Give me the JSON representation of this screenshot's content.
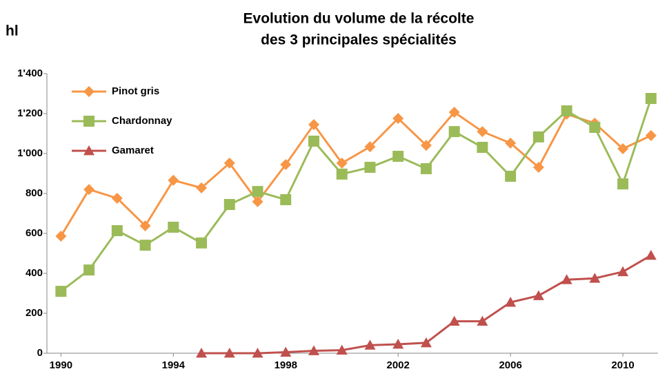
{
  "chart_data": {
    "type": "line",
    "title": [
      "Evolution du volume de la récolte",
      "des 3 principales spécialités"
    ],
    "y_label": "hl",
    "x": [
      1990,
      1991,
      1992,
      1993,
      1994,
      1995,
      1996,
      1997,
      1998,
      1999,
      2000,
      2001,
      2002,
      2003,
      2004,
      2005,
      2006,
      2007,
      2008,
      2009,
      2010,
      2011
    ],
    "series": [
      {
        "name": "Pinot gris",
        "color": "#f79646",
        "marker": "diamond",
        "values": [
          586,
          820,
          776,
          638,
          866,
          828,
          952,
          759,
          945,
          1145,
          952,
          1034,
          1176,
          1041,
          1207,
          1110,
          1052,
          931,
          1197,
          1152,
          1024,
          1090
        ]
      },
      {
        "name": "Chardonnay",
        "color": "#9bbb59",
        "marker": "square",
        "values": [
          310,
          417,
          614,
          541,
          631,
          552,
          745,
          810,
          769,
          1062,
          897,
          931,
          986,
          924,
          1110,
          1031,
          886,
          1083,
          1214,
          1131,
          848,
          1276
        ]
      },
      {
        "name": "Gamaret",
        "color": "#c0504d",
        "marker": "triangle",
        "values": [
          null,
          null,
          null,
          null,
          null,
          0,
          0,
          0,
          5,
          12,
          15,
          40,
          45,
          52,
          160,
          160,
          255,
          288,
          368,
          375,
          408,
          490
        ]
      }
    ],
    "xlim": [
      1989.5,
      2011.25
    ],
    "xticks": [
      1990,
      1994,
      1998,
      2002,
      2006,
      2010
    ],
    "ylim": [
      0,
      1400
    ],
    "yticks": [
      0,
      200,
      400,
      600,
      800,
      {
        "value": 1000,
        "label": "1'000"
      },
      {
        "value": 1200,
        "label": "1'200"
      },
      {
        "value": 1400,
        "label": "1'400"
      }
    ],
    "grid": false,
    "legend": "top-left"
  }
}
